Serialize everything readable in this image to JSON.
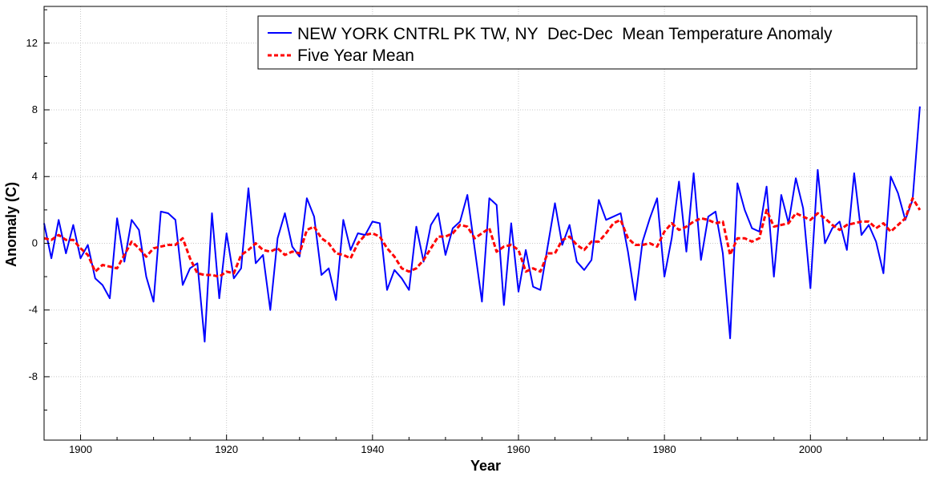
{
  "chart_data": {
    "type": "line",
    "title": "",
    "xlabel": "Year",
    "ylabel": "Anomaly (C)",
    "xlim": [
      1895,
      2016
    ],
    "ylim": [
      -11.8,
      14.2
    ],
    "xticks": [
      1900,
      1920,
      1940,
      1960,
      1980,
      2000
    ],
    "yticks": [
      -8,
      -4,
      0,
      4,
      8,
      12
    ],
    "grid": true,
    "legend_position": "top-right",
    "colors": {
      "anomaly": "#0000ff",
      "five_year_mean": "#ff0000"
    },
    "x": [
      1895,
      1896,
      1897,
      1898,
      1899,
      1900,
      1901,
      1902,
      1903,
      1904,
      1905,
      1906,
      1907,
      1908,
      1909,
      1910,
      1911,
      1912,
      1913,
      1914,
      1915,
      1916,
      1917,
      1918,
      1919,
      1920,
      1921,
      1922,
      1923,
      1924,
      1925,
      1926,
      1927,
      1928,
      1929,
      1930,
      1931,
      1932,
      1933,
      1934,
      1935,
      1936,
      1937,
      1938,
      1939,
      1940,
      1941,
      1942,
      1943,
      1944,
      1945,
      1946,
      1947,
      1948,
      1949,
      1950,
      1951,
      1952,
      1953,
      1954,
      1955,
      1956,
      1957,
      1958,
      1959,
      1960,
      1961,
      1962,
      1963,
      1964,
      1965,
      1966,
      1967,
      1968,
      1969,
      1970,
      1971,
      1972,
      1973,
      1974,
      1975,
      1976,
      1977,
      1978,
      1979,
      1980,
      1981,
      1982,
      1983,
      1984,
      1985,
      1986,
      1987,
      1988,
      1989,
      1990,
      1991,
      1992,
      1993,
      1994,
      1995,
      1996,
      1997,
      1998,
      1999,
      2000,
      2001,
      2002,
      2003,
      2004,
      2005,
      2006,
      2007,
      2008,
      2009,
      2010,
      2011,
      2012,
      2013,
      2014,
      2015
    ],
    "series": [
      {
        "name": "NEW YORK CNTRL PK TW, NY  Dec-Dec  Mean Temperature Anomaly",
        "style": "solid",
        "values": [
          1.2,
          -0.9,
          1.4,
          -0.6,
          1.1,
          -0.9,
          -0.1,
          -2.1,
          -2.5,
          -3.3,
          1.5,
          -1.1,
          1.4,
          0.8,
          -2.0,
          -3.5,
          1.9,
          1.8,
          1.4,
          -2.5,
          -1.5,
          -1.2,
          -5.9,
          1.8,
          -3.3,
          0.6,
          -2.1,
          -1.5,
          3.3,
          -1.2,
          -0.7,
          -4.0,
          0.3,
          1.8,
          -0.2,
          -0.8,
          2.7,
          1.6,
          -1.9,
          -1.5,
          -3.4,
          1.4,
          -0.4,
          0.6,
          0.5,
          1.3,
          1.2,
          -2.8,
          -1.6,
          -2.1,
          -2.8,
          1.0,
          -1.1,
          1.1,
          1.8,
          -0.7,
          0.9,
          1.3,
          2.9,
          -0.3,
          -3.5,
          2.7,
          2.3,
          -3.7,
          1.2,
          -2.9,
          -0.4,
          -2.6,
          -2.8,
          -0.2,
          2.4,
          -0.1,
          1.1,
          -1.1,
          -1.6,
          -1.0,
          2.6,
          1.4,
          1.6,
          1.8,
          -0.5,
          -3.4,
          0.1,
          1.5,
          2.7,
          -2.0,
          0.3,
          3.7,
          -0.5,
          4.2,
          -1.0,
          1.6,
          1.9,
          -0.6,
          -5.7,
          3.6,
          2.0,
          0.9,
          0.7,
          3.4,
          -2.0,
          2.9,
          1.2,
          3.9,
          2.1,
          -2.7,
          4.4,
          0.0,
          0.9,
          1.3,
          -0.4,
          4.2,
          0.5,
          1.1,
          0.1,
          -1.8,
          4.0,
          3.0,
          1.4,
          2.6,
          8.2
        ]
      },
      {
        "name": "Five Year Mean",
        "style": "dashed",
        "values": [
          0.3,
          0.2,
          0.5,
          0.2,
          0.2,
          -0.3,
          -0.7,
          -1.7,
          -1.3,
          -1.4,
          -1.5,
          -0.7,
          0.1,
          -0.3,
          -0.8,
          -0.3,
          -0.2,
          -0.1,
          -0.1,
          0.3,
          -0.9,
          -1.8,
          -1.9,
          -1.9,
          -2.0,
          -1.7,
          -1.8,
          -0.7,
          -0.4,
          0.0,
          -0.4,
          -0.5,
          -0.3,
          -0.7,
          -0.5,
          -0.6,
          0.8,
          1.0,
          0.3,
          0.0,
          -0.6,
          -0.7,
          -0.9,
          0.0,
          0.5,
          0.6,
          0.4,
          -0.3,
          -0.8,
          -1.5,
          -1.7,
          -1.5,
          -1.0,
          -0.3,
          0.4,
          0.4,
          0.6,
          1.1,
          1.0,
          0.3,
          0.6,
          0.9,
          -0.5,
          -0.2,
          -0.1,
          -0.4,
          -1.7,
          -1.5,
          -1.7,
          -0.6,
          -0.6,
          0.2,
          0.4,
          -0.1,
          -0.4,
          0.1,
          0.1,
          0.6,
          1.2,
          1.4,
          0.3,
          -0.1,
          -0.1,
          0.0,
          -0.2,
          0.7,
          1.2,
          0.8,
          1.0,
          1.3,
          1.5,
          1.4,
          1.2,
          1.3,
          -0.7,
          0.3,
          0.3,
          0.1,
          0.3,
          2.0,
          1.0,
          1.1,
          1.2,
          1.8,
          1.6,
          1.4,
          1.8,
          1.5,
          1.1,
          0.8,
          1.1,
          1.2,
          1.3,
          1.3,
          0.9,
          1.2,
          0.7,
          1.1,
          1.5,
          2.7,
          2.0
        ]
      }
    ]
  }
}
